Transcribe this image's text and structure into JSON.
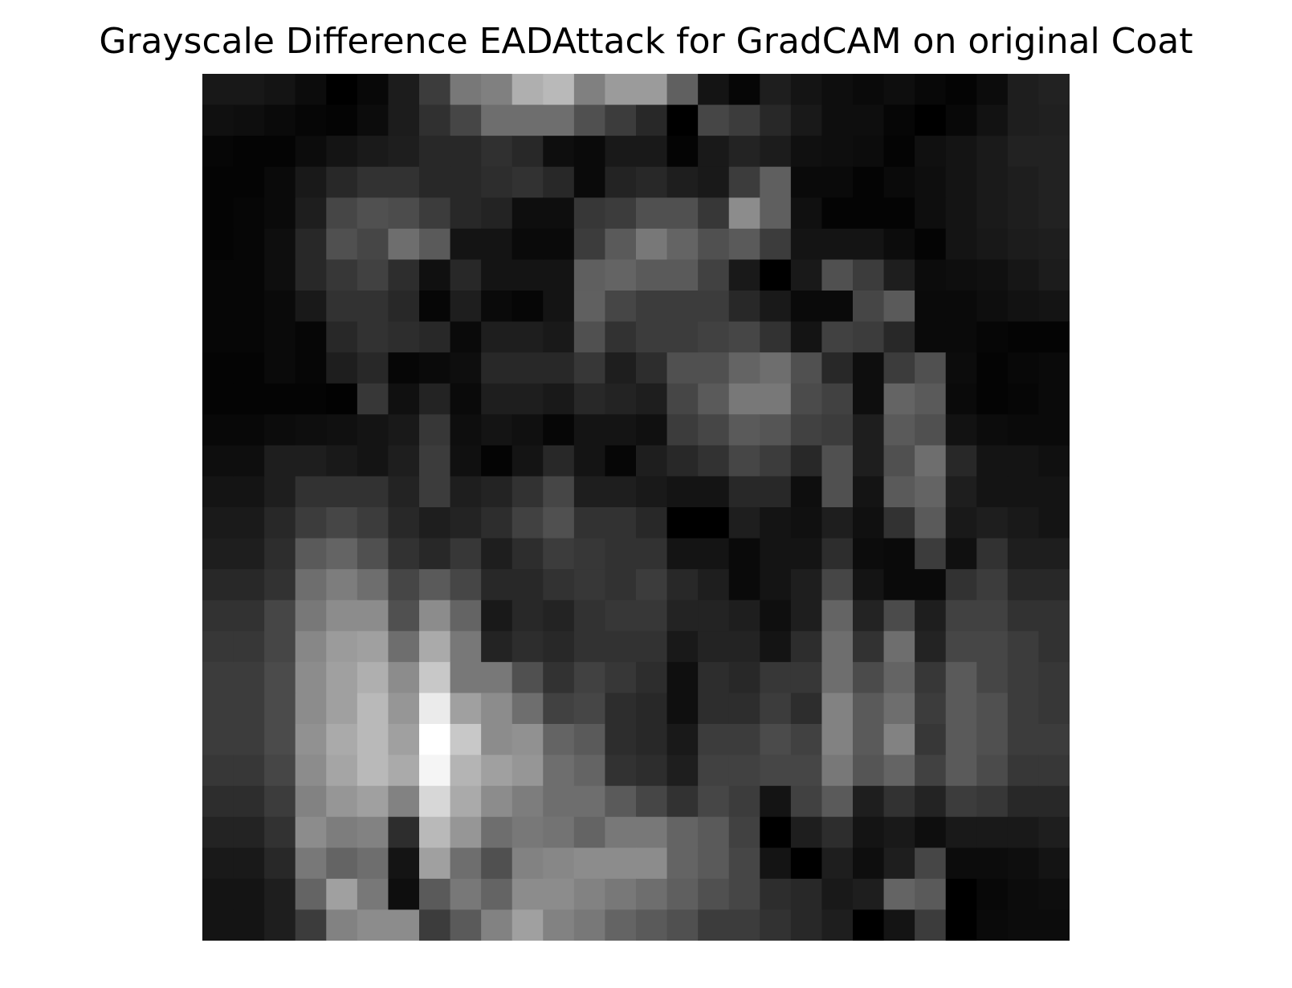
{
  "chart_data": {
    "type": "heatmap",
    "title": "Grayscale Difference EADAttack for GradCAM on original Coat",
    "xlabel": "",
    "ylabel": "",
    "colormap": "gray",
    "axes_visible": false,
    "grid": false,
    "value_range": [
      0,
      255
    ],
    "rows": 28,
    "cols": 28,
    "values": [
      [
        24,
        24,
        20,
        12,
        0,
        8,
        28,
        60,
        120,
        128,
        175,
        185,
        128,
        155,
        155,
        96,
        20,
        6,
        30,
        20,
        14,
        10,
        14,
        8,
        4,
        12,
        30,
        34
      ],
      [
        16,
        14,
        10,
        6,
        4,
        12,
        28,
        48,
        70,
        110,
        110,
        110,
        80,
        60,
        40,
        0,
        70,
        60,
        40,
        25,
        14,
        14,
        6,
        0,
        8,
        18,
        30,
        32
      ],
      [
        6,
        4,
        4,
        12,
        20,
        26,
        30,
        40,
        40,
        48,
        40,
        14,
        10,
        25,
        25,
        4,
        25,
        35,
        28,
        16,
        14,
        12,
        4,
        16,
        20,
        26,
        34,
        34
      ],
      [
        4,
        4,
        10,
        25,
        40,
        50,
        50,
        40,
        40,
        45,
        50,
        40,
        10,
        35,
        40,
        30,
        25,
        60,
        95,
        10,
        10,
        4,
        10,
        14,
        20,
        26,
        30,
        34
      ],
      [
        4,
        6,
        10,
        30,
        70,
        80,
        76,
        60,
        40,
        35,
        14,
        14,
        55,
        60,
        80,
        80,
        55,
        140,
        95,
        16,
        4,
        4,
        4,
        14,
        20,
        26,
        30,
        34
      ],
      [
        4,
        6,
        14,
        40,
        80,
        70,
        110,
        90,
        20,
        20,
        10,
        10,
        60,
        90,
        120,
        100,
        80,
        90,
        60,
        20,
        20,
        20,
        12,
        4,
        20,
        24,
        28,
        30
      ],
      [
        6,
        6,
        14,
        40,
        55,
        65,
        45,
        16,
        40,
        20,
        20,
        20,
        95,
        100,
        90,
        90,
        65,
        25,
        0,
        25,
        80,
        60,
        30,
        12,
        14,
        16,
        22,
        28
      ],
      [
        6,
        6,
        10,
        25,
        50,
        50,
        40,
        6,
        30,
        10,
        6,
        20,
        96,
        70,
        60,
        60,
        60,
        40,
        25,
        10,
        10,
        70,
        90,
        10,
        10,
        14,
        18,
        20
      ],
      [
        6,
        6,
        10,
        6,
        40,
        50,
        45,
        40,
        10,
        30,
        30,
        25,
        80,
        50,
        60,
        60,
        65,
        70,
        50,
        20,
        65,
        60,
        40,
        10,
        10,
        6,
        4,
        4
      ],
      [
        4,
        4,
        10,
        6,
        30,
        40,
        6,
        10,
        14,
        40,
        40,
        40,
        55,
        30,
        45,
        80,
        80,
        100,
        110,
        80,
        40,
        14,
        60,
        80,
        12,
        4,
        8,
        10
      ],
      [
        4,
        4,
        4,
        4,
        2,
        55,
        16,
        35,
        10,
        30,
        30,
        25,
        40,
        35,
        30,
        70,
        90,
        120,
        120,
        75,
        65,
        14,
        100,
        90,
        10,
        4,
        6,
        10
      ],
      [
        8,
        8,
        12,
        14,
        16,
        20,
        25,
        55,
        14,
        20,
        16,
        6,
        20,
        20,
        16,
        60,
        70,
        90,
        85,
        65,
        60,
        30,
        90,
        80,
        18,
        12,
        10,
        10
      ],
      [
        14,
        14,
        30,
        30,
        25,
        20,
        30,
        60,
        16,
        4,
        20,
        40,
        20,
        6,
        30,
        40,
        50,
        70,
        60,
        40,
        80,
        30,
        80,
        110,
        40,
        20,
        20,
        16
      ],
      [
        20,
        20,
        30,
        50,
        50,
        50,
        35,
        60,
        30,
        35,
        50,
        70,
        30,
        30,
        25,
        20,
        20,
        40,
        40,
        14,
        80,
        20,
        90,
        100,
        30,
        20,
        20,
        20
      ],
      [
        26,
        26,
        40,
        60,
        70,
        60,
        40,
        30,
        35,
        45,
        65,
        80,
        50,
        50,
        40,
        0,
        0,
        30,
        20,
        16,
        30,
        16,
        50,
        90,
        25,
        30,
        25,
        20
      ],
      [
        30,
        30,
        45,
        90,
        100,
        80,
        50,
        40,
        55,
        30,
        45,
        60,
        55,
        50,
        50,
        20,
        20,
        10,
        20,
        20,
        45,
        12,
        10,
        60,
        16,
        50,
        30,
        30
      ],
      [
        40,
        40,
        50,
        110,
        125,
        110,
        70,
        90,
        70,
        40,
        40,
        50,
        55,
        50,
        60,
        40,
        30,
        10,
        20,
        30,
        70,
        20,
        10,
        10,
        50,
        60,
        40,
        40
      ],
      [
        50,
        50,
        70,
        120,
        140,
        140,
        80,
        140,
        100,
        25,
        40,
        35,
        50,
        55,
        55,
        35,
        35,
        30,
        15,
        30,
        100,
        35,
        75,
        30,
        65,
        65,
        50,
        50
      ],
      [
        55,
        55,
        70,
        135,
        155,
        160,
        110,
        170,
        120,
        35,
        45,
        40,
        50,
        50,
        50,
        25,
        35,
        35,
        20,
        45,
        110,
        50,
        110,
        35,
        70,
        70,
        60,
        50
      ],
      [
        60,
        60,
        75,
        140,
        160,
        175,
        140,
        200,
        120,
        120,
        80,
        50,
        65,
        55,
        45,
        15,
        45,
        40,
        55,
        55,
        110,
        75,
        100,
        55,
        90,
        70,
        60,
        55
      ],
      [
        60,
        60,
        75,
        140,
        160,
        185,
        150,
        235,
        160,
        140,
        110,
        65,
        70,
        45,
        40,
        15,
        45,
        45,
        60,
        45,
        130,
        90,
        110,
        60,
        90,
        80,
        60,
        55
      ],
      [
        60,
        60,
        75,
        145,
        170,
        185,
        160,
        255,
        200,
        140,
        145,
        100,
        90,
        45,
        40,
        25,
        60,
        60,
        75,
        65,
        130,
        90,
        130,
        55,
        90,
        80,
        60,
        60
      ],
      [
        55,
        55,
        70,
        140,
        165,
        185,
        170,
        245,
        180,
        160,
        150,
        110,
        100,
        50,
        45,
        30,
        65,
        65,
        70,
        70,
        120,
        85,
        100,
        65,
        90,
        75,
        55,
        55
      ],
      [
        45,
        45,
        60,
        130,
        150,
        160,
        130,
        215,
        170,
        140,
        125,
        110,
        110,
        90,
        70,
        50,
        70,
        60,
        20,
        65,
        90,
        30,
        50,
        35,
        60,
        55,
        40,
        40
      ],
      [
        35,
        35,
        50,
        140,
        125,
        130,
        45,
        185,
        150,
        110,
        120,
        115,
        100,
        120,
        120,
        100,
        90,
        65,
        0,
        30,
        45,
        20,
        25,
        14,
        25,
        25,
        25,
        30
      ],
      [
        25,
        25,
        40,
        120,
        100,
        110,
        20,
        160,
        110,
        80,
        130,
        135,
        140,
        140,
        140,
        100,
        90,
        70,
        20,
        0,
        30,
        14,
        30,
        70,
        12,
        12,
        14,
        20
      ],
      [
        20,
        20,
        30,
        100,
        160,
        120,
        14,
        90,
        120,
        100,
        140,
        140,
        130,
        120,
        110,
        95,
        80,
        70,
        45,
        40,
        25,
        30,
        100,
        90,
        0,
        8,
        12,
        14
      ],
      [
        20,
        20,
        30,
        60,
        130,
        140,
        140,
        60,
        90,
        130,
        160,
        130,
        120,
        100,
        90,
        80,
        60,
        60,
        50,
        40,
        30,
        0,
        20,
        60,
        0,
        10,
        12,
        12
      ]
    ]
  }
}
